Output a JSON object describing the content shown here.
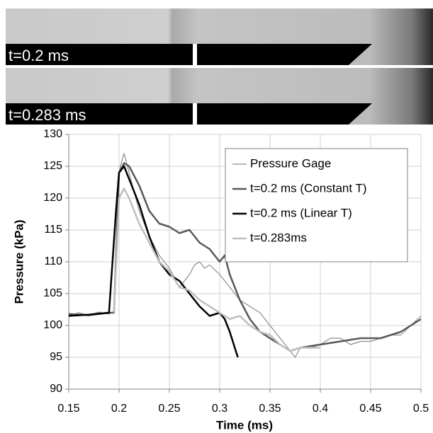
{
  "images": [
    {
      "label": "t=0.2 ms"
    },
    {
      "label": "t=0.283 ms"
    }
  ],
  "chart_data": {
    "type": "line",
    "x_label": "Time (ms)",
    "y_label": "Pressure (kPa)",
    "xlim": [
      0.15,
      0.5
    ],
    "xticks": [
      0.15,
      0.2,
      0.25,
      0.3,
      0.35,
      0.4,
      0.45,
      0.5
    ],
    "ylim": [
      90,
      130
    ],
    "yticks": [
      90,
      95,
      100,
      105,
      110,
      115,
      120,
      125,
      130
    ],
    "grid": true,
    "legend": "upper right",
    "series": [
      {
        "name": "Pressure Gage",
        "color": "#8c8c8c",
        "width": 1.2,
        "x": [
          0.15,
          0.16,
          0.17,
          0.18,
          0.19,
          0.195,
          0.198,
          0.2,
          0.203,
          0.205,
          0.21,
          0.215,
          0.22,
          0.225,
          0.23,
          0.24,
          0.25,
          0.26,
          0.265,
          0.27,
          0.275,
          0.28,
          0.285,
          0.29,
          0.3,
          0.31,
          0.32,
          0.33,
          0.34,
          0.35,
          0.36,
          0.37,
          0.375,
          0.38,
          0.39,
          0.4,
          0.41,
          0.42,
          0.43,
          0.44,
          0.45,
          0.46,
          0.47,
          0.48,
          0.49,
          0.5
        ],
        "values": [
          101.5,
          102,
          101.6,
          102.1,
          101.8,
          102.2,
          115,
          124,
          126,
          127,
          124,
          121,
          118,
          116,
          114,
          111,
          109,
          106,
          107,
          108,
          109.5,
          110,
          109,
          109.5,
          108,
          106,
          104,
          103,
          102,
          100,
          98,
          96,
          95,
          96.5,
          96.5,
          97,
          98,
          98,
          97,
          97.5,
          97.5,
          98,
          98.5,
          98.5,
          100,
          101.5
        ]
      },
      {
        "name": "t=0.2 ms (Constant T)",
        "color": "#595959",
        "width": 2.5,
        "x": [
          0.15,
          0.17,
          0.19,
          0.195,
          0.2,
          0.205,
          0.21,
          0.22,
          0.23,
          0.24,
          0.25,
          0.26,
          0.27,
          0.28,
          0.29,
          0.3,
          0.305,
          0.31,
          0.32,
          0.33,
          0.34,
          0.35,
          0.36,
          0.37,
          0.38,
          0.4,
          0.42,
          0.44,
          0.46,
          0.48,
          0.5
        ],
        "values": [
          101.8,
          101.6,
          102,
          102,
          124,
          125.5,
          125,
          122,
          118,
          116,
          115.5,
          114.5,
          115,
          113,
          112,
          110,
          111,
          108,
          104,
          101,
          99,
          98,
          97,
          96,
          96.5,
          97,
          97.5,
          98,
          98,
          99,
          101
        ]
      },
      {
        "name": "t=0.2 ms (Linear T)",
        "color": "#000000",
        "width": 2.5,
        "x": [
          0.15,
          0.17,
          0.19,
          0.197,
          0.2,
          0.205,
          0.21,
          0.22,
          0.23,
          0.24,
          0.25,
          0.26,
          0.27,
          0.275,
          0.28,
          0.29,
          0.3,
          0.305,
          0.31,
          0.315,
          0.318
        ],
        "values": [
          101.5,
          101.7,
          102,
          118,
          124,
          125,
          123,
          119,
          114,
          110,
          108,
          107,
          105,
          104,
          103,
          101.5,
          102,
          101,
          99,
          96.5,
          95
        ]
      },
      {
        "name": "t=0.283ms",
        "color": "#bfbfbf",
        "width": 2.5,
        "x": [
          0.195,
          0.2,
          0.205,
          0.21,
          0.22,
          0.23,
          0.24,
          0.25,
          0.26,
          0.27,
          0.28,
          0.29,
          0.3,
          0.31,
          0.32,
          0.33,
          0.34,
          0.35,
          0.36,
          0.37,
          0.38,
          0.4
        ],
        "values": [
          102,
          120,
          121.5,
          120,
          116,
          113,
          110,
          108.5,
          106,
          105.5,
          104,
          103,
          102,
          101,
          101.5,
          100,
          99,
          98.5,
          97,
          96,
          96.5,
          96.5
        ]
      }
    ]
  }
}
